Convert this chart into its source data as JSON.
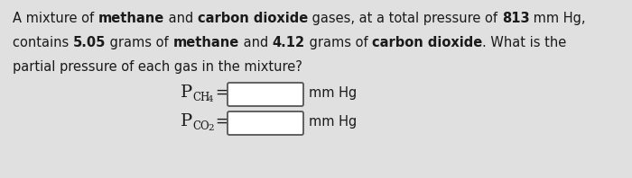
{
  "bg_color": "#e0e0e0",
  "text_color": "#1a1a1a",
  "fontsize": 10.5,
  "eq_fontsize": 12,
  "sub_fontsize": 8.5,
  "line1_parts": [
    {
      "text": "A mixture of ",
      "bold": false
    },
    {
      "text": "methane",
      "bold": true
    },
    {
      "text": " and ",
      "bold": false
    },
    {
      "text": "carbon dioxide",
      "bold": true
    },
    {
      "text": " gases, at a total pressure of ",
      "bold": false
    },
    {
      "text": "813",
      "bold": true
    },
    {
      "text": " mm Hg,",
      "bold": false
    }
  ],
  "line2_parts": [
    {
      "text": "contains ",
      "bold": false
    },
    {
      "text": "5.05",
      "bold": true
    },
    {
      "text": " grams of ",
      "bold": false
    },
    {
      "text": "methane",
      "bold": true
    },
    {
      "text": " and ",
      "bold": false
    },
    {
      "text": "4.12",
      "bold": true
    },
    {
      "text": " grams of ",
      "bold": false
    },
    {
      "text": "carbon dioxide",
      "bold": true
    },
    {
      "text": ". What is the",
      "bold": false
    }
  ],
  "line3": "partial pressure of each gas in the mixture?",
  "eq1_label": "P",
  "eq1_sub": "CH",
  "eq1_subnum": "4",
  "eq2_label": "P",
  "eq2_sub": "CO",
  "eq2_subnum": "2"
}
